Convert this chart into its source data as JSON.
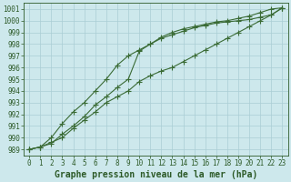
{
  "xlabel": "Graphe pression niveau de la mer (hPa)",
  "x": [
    0,
    1,
    2,
    3,
    4,
    5,
    6,
    7,
    8,
    9,
    10,
    11,
    12,
    13,
    14,
    15,
    16,
    17,
    18,
    19,
    20,
    21,
    22,
    23
  ],
  "series1": [
    989.0,
    989.2,
    989.5,
    990.3,
    991.0,
    991.8,
    992.8,
    993.5,
    994.3,
    995.0,
    997.4,
    998.0,
    998.6,
    999.0,
    999.3,
    999.5,
    999.7,
    999.9,
    1000.0,
    1000.2,
    1000.4,
    1000.7,
    1001.0,
    1001.1
  ],
  "series2": [
    989.0,
    989.2,
    990.0,
    991.2,
    992.2,
    993.0,
    994.0,
    995.0,
    996.2,
    997.0,
    997.5,
    998.0,
    998.5,
    998.8,
    999.1,
    999.4,
    999.6,
    999.8,
    999.9,
    1000.0,
    1000.1,
    1000.3,
    1000.5,
    1001.1
  ],
  "series3": [
    989.0,
    989.2,
    989.6,
    990.0,
    990.8,
    991.5,
    992.2,
    993.0,
    993.5,
    994.0,
    994.8,
    995.3,
    995.7,
    996.0,
    996.5,
    997.0,
    997.5,
    998.0,
    998.5,
    999.0,
    999.5,
    1000.0,
    1000.5,
    1001.1
  ],
  "ylim_min": 988.5,
  "ylim_max": 1001.5,
  "yticks": [
    989,
    990,
    991,
    992,
    993,
    994,
    995,
    996,
    997,
    998,
    999,
    1000,
    1001
  ],
  "line_color": "#3a6b35",
  "bg_color": "#cde8ec",
  "grid_color": "#aacdd4",
  "axis_color": "#2d5a28",
  "tick_fontsize": 5.5,
  "label_fontsize": 7.0,
  "marker": "+",
  "marker_size": 4.0,
  "linewidth": 0.8
}
